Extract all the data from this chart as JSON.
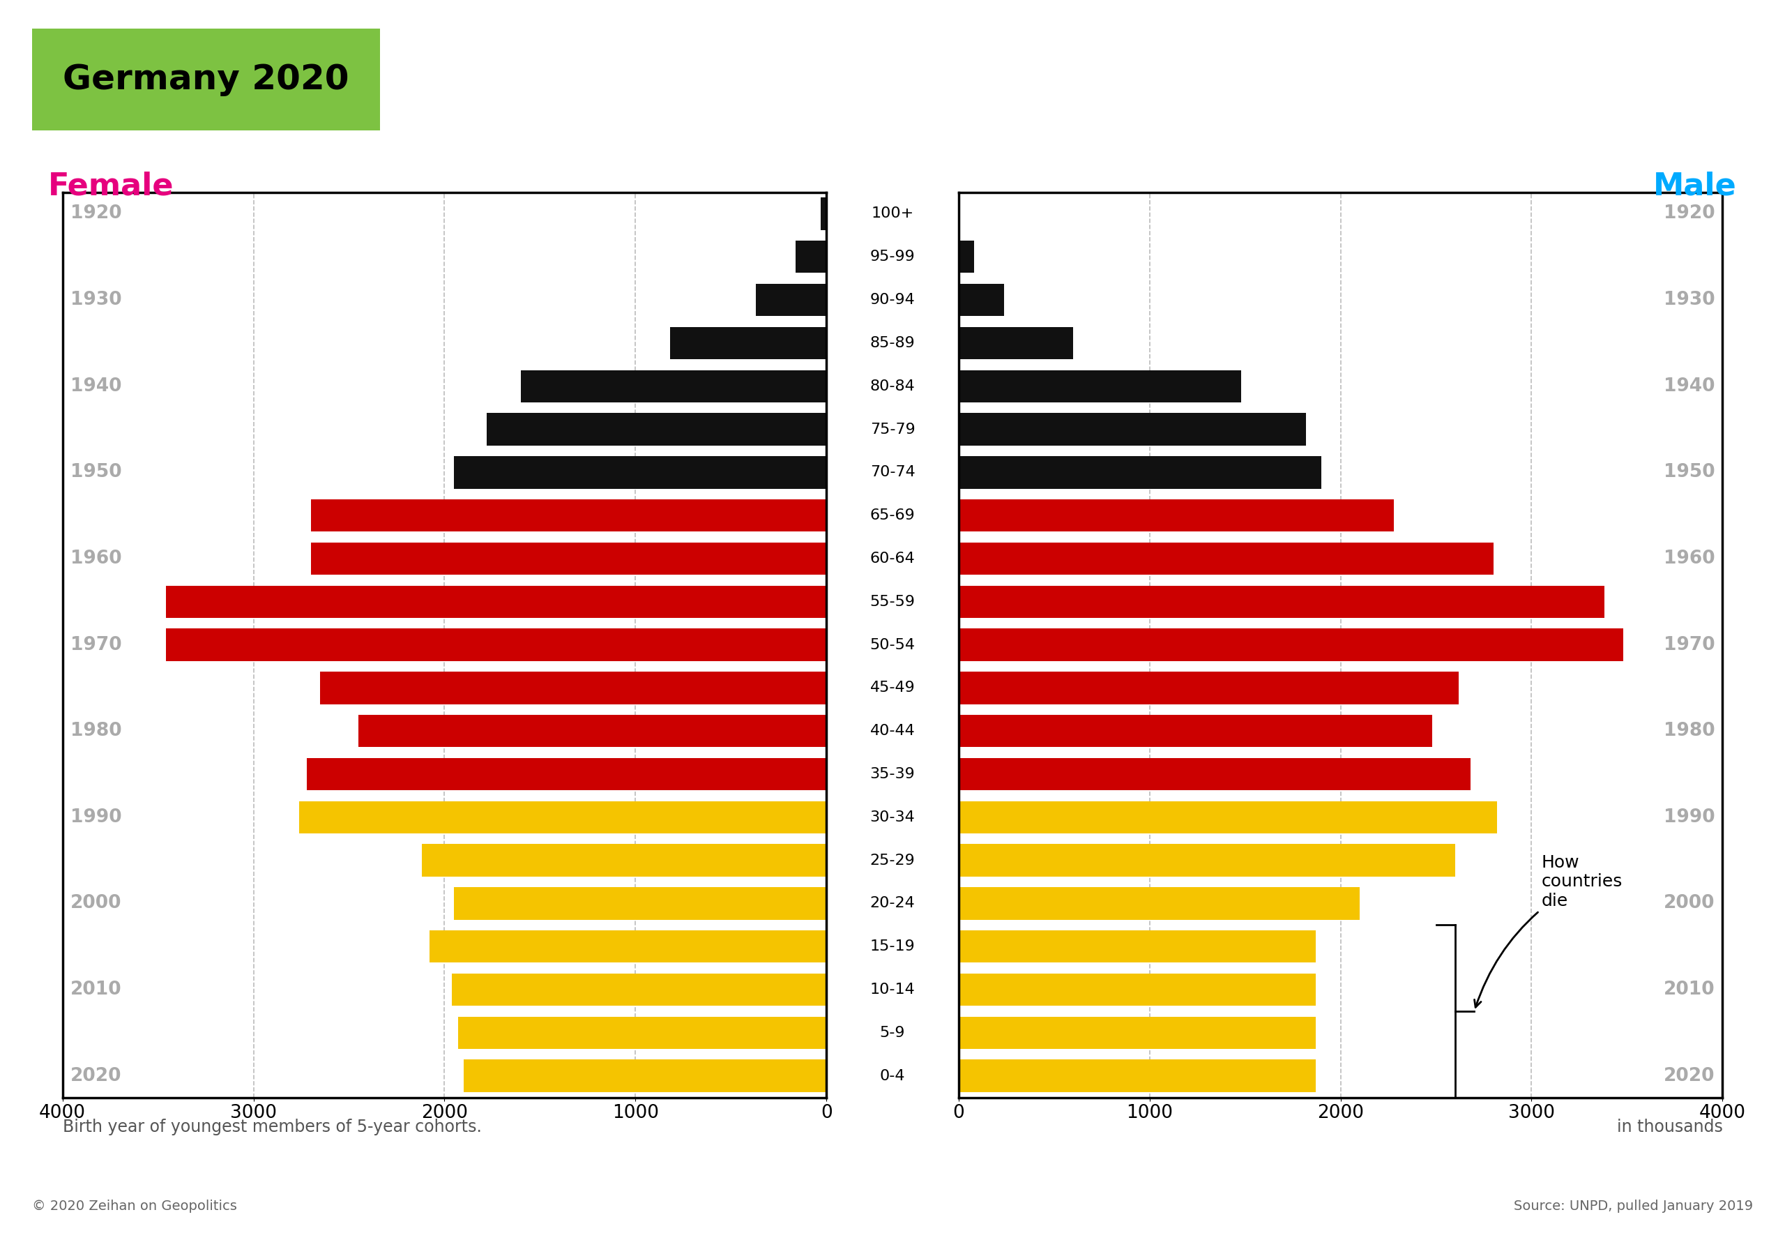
{
  "title": "Germany 2020",
  "title_bg_color": "#7dc242",
  "female_label": "Female",
  "male_label": "Male",
  "female_color": "#e6007e",
  "male_color": "#00aaff",
  "age_groups": [
    "100+",
    "95-99",
    "90-94",
    "85-89",
    "80-84",
    "75-79",
    "70-74",
    "65-69",
    "60-64",
    "55-59",
    "50-54",
    "45-49",
    "40-44",
    "35-39",
    "30-34",
    "25-29",
    "20-24",
    "15-19",
    "10-14",
    "5-9",
    "0-4"
  ],
  "birth_years": [
    "1920",
    "",
    "1930",
    "",
    "1940",
    "",
    "1950",
    "",
    "1960",
    "",
    "1970",
    "",
    "1980",
    "",
    "1990",
    "",
    "2000",
    "",
    "2010",
    "",
    "2020"
  ],
  "female_values": [
    30,
    160,
    370,
    820,
    1600,
    1780,
    1950,
    2700,
    2700,
    3460,
    3460,
    2650,
    2450,
    2720,
    2760,
    2120,
    1950,
    2080,
    1960,
    1930,
    1900
  ],
  "male_values": [
    10,
    80,
    240,
    600,
    1480,
    1820,
    1900,
    2280,
    2800,
    3380,
    3480,
    2620,
    2480,
    2680,
    2820,
    2600,
    2100,
    1870,
    1870,
    1870,
    1870
  ],
  "bar_colors": [
    "#111111",
    "#111111",
    "#111111",
    "#111111",
    "#111111",
    "#111111",
    "#111111",
    "#cc0000",
    "#cc0000",
    "#cc0000",
    "#cc0000",
    "#cc0000",
    "#cc0000",
    "#cc0000",
    "#f5c400",
    "#f5c400",
    "#f5c400",
    "#f5c400",
    "#f5c400",
    "#f5c400",
    "#f5c400"
  ],
  "xlim": 4000,
  "xlabel_left": "Birth year of youngest members of 5-year cohorts.",
  "xlabel_right": "in thousands",
  "copyright_text": "© 2020 Zeihan on Geopolitics",
  "source_text": "Source: UNPD, pulled January 2019",
  "annotation_text": "How\ncountries\ndie",
  "background_color": "#ffffff",
  "plot_bg_color": "#ffffff",
  "grid_color": "#bbbbbb",
  "year_label_color": "#aaaaaa",
  "border_color": "#000000"
}
